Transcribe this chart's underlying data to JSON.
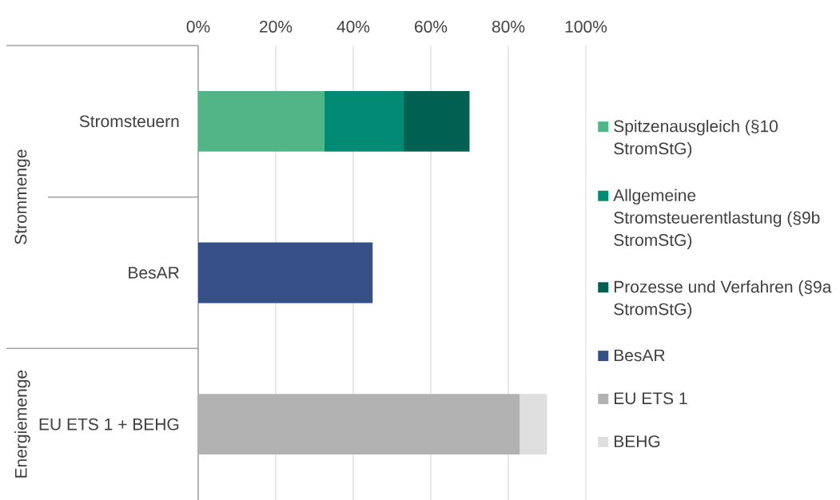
{
  "chart_data": {
    "type": "bar",
    "orientation": "horizontal",
    "stacked": true,
    "categories": [
      "Stromsteuern",
      "BesAR",
      "EU ETS 1 + BEHG"
    ],
    "series": [
      {
        "name": "Spitzenausgleich (§10 StromStG)",
        "color": "#52b587",
        "values": [
          32.5,
          null,
          null
        ]
      },
      {
        "name": "Allgemeine Stromsteuerentlastung (§9b StromStG)",
        "color": "#028a74",
        "values": [
          20.5,
          null,
          null
        ]
      },
      {
        "name": "Prozesse und Verfahren (§9a StromStG)",
        "color": "#006152",
        "values": [
          17,
          null,
          null
        ]
      },
      {
        "name": "BesAR",
        "color": "#364f86",
        "values": [
          null,
          45,
          null
        ]
      },
      {
        "name": "EU ETS 1",
        "color": "#b2b2b2",
        "values": [
          null,
          null,
          83
        ]
      },
      {
        "name": "BEHG",
        "color": "#dedede",
        "values": [
          null,
          null,
          7
        ]
      }
    ],
    "xlim": [
      0,
      100
    ],
    "xticks": [
      {
        "value": 0,
        "label": "0%"
      },
      {
        "value": 20,
        "label": "20%"
      },
      {
        "value": 40,
        "label": "40%"
      },
      {
        "value": 60,
        "label": "60%"
      },
      {
        "value": 80,
        "label": "80%"
      },
      {
        "value": 100,
        "label": "100%"
      }
    ],
    "grid": "x",
    "legend": "right",
    "annotations": [
      "Strommenge",
      "Energiemenge"
    ]
  }
}
